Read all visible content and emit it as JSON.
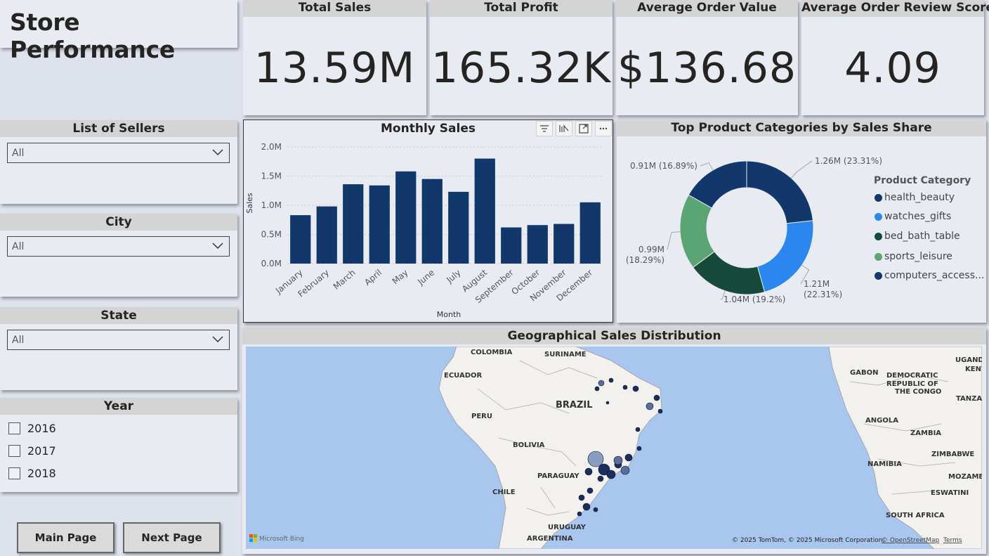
{
  "page_title": "Store Performance",
  "kpis": [
    {
      "label": "Total Sales",
      "value": "13.59M"
    },
    {
      "label": "Total Profit",
      "value": "165.32K"
    },
    {
      "label": "Average Order Value",
      "value": "$136.68"
    },
    {
      "label": "Average Order Review Score",
      "value": "4.09"
    }
  ],
  "filters": {
    "sellers": {
      "label": "List of Sellers",
      "value": "All"
    },
    "city": {
      "label": "City",
      "value": "All"
    },
    "state": {
      "label": "State",
      "value": "All"
    },
    "year": {
      "label": "Year",
      "options": [
        "2016",
        "2017",
        "2018"
      ]
    }
  },
  "nav": {
    "main": "Main Page",
    "next": "Next Page"
  },
  "colors": {
    "bar": "#12386b",
    "accent_blue": "#2a87f0",
    "dark_green": "#174a3a",
    "light_green": "#5aa573",
    "navy": "#12386b"
  },
  "chart_data": [
    {
      "type": "bar",
      "title": "Monthly Sales",
      "xlabel": "Month",
      "ylabel": "Sales",
      "categories": [
        "January",
        "February",
        "March",
        "April",
        "May",
        "June",
        "July",
        "August",
        "September",
        "October",
        "November",
        "December"
      ],
      "values": [
        0.83,
        0.98,
        1.36,
        1.34,
        1.58,
        1.45,
        1.23,
        1.8,
        0.62,
        0.66,
        0.68,
        1.05
      ],
      "yticks": [
        "0.0M",
        "0.5M",
        "1.0M",
        "1.5M",
        "2.0M"
      ],
      "ylim": [
        0,
        2.0
      ],
      "grid": true
    },
    {
      "type": "pie",
      "title": "Top Product Categories by Sales Share",
      "legend_title": "Product Category",
      "labels": [
        "health_beauty",
        "watches_gifts",
        "bed_bath_table",
        "sports_leisure",
        "computers_access..."
      ],
      "values": [
        1.26,
        1.21,
        1.04,
        0.99,
        0.91
      ],
      "data_labels": [
        "1.26M (23.31%)",
        "1.21M (22.31%)",
        "1.04M (19.2%)",
        "0.99M (18.29%)",
        "0.91M (16.89%)"
      ],
      "colors": [
        "#12386b",
        "#2a87f0",
        "#174a3a",
        "#5aa573",
        "#12386b"
      ]
    }
  ],
  "map": {
    "title": "Geographical Sales Distribution",
    "labels": [
      "COLOMBIA",
      "SURINAME",
      "ECUADOR",
      "BRAZIL",
      "PERU",
      "BOLIVIA",
      "PARAGUAY",
      "CHILE",
      "URUGUAY",
      "ARGENTINA",
      "GABON",
      "DEMOCRATIC",
      "REPUBLIC OF",
      "THE CONGO",
      "UGANDA",
      "KENY",
      "TANZANIA",
      "ANGOLA",
      "ZAMBIA",
      "ZIMBABWE",
      "NAMIBIA",
      "MOZAMBIQU",
      "ESWATINI",
      "SOUTH AFRICA"
    ],
    "attribution": "© 2025 TomTom, © 2025 Microsoft Corporation,",
    "osm_link": "© OpenStreetMap",
    "terms": "Terms",
    "logo": "Microsoft Bing"
  }
}
